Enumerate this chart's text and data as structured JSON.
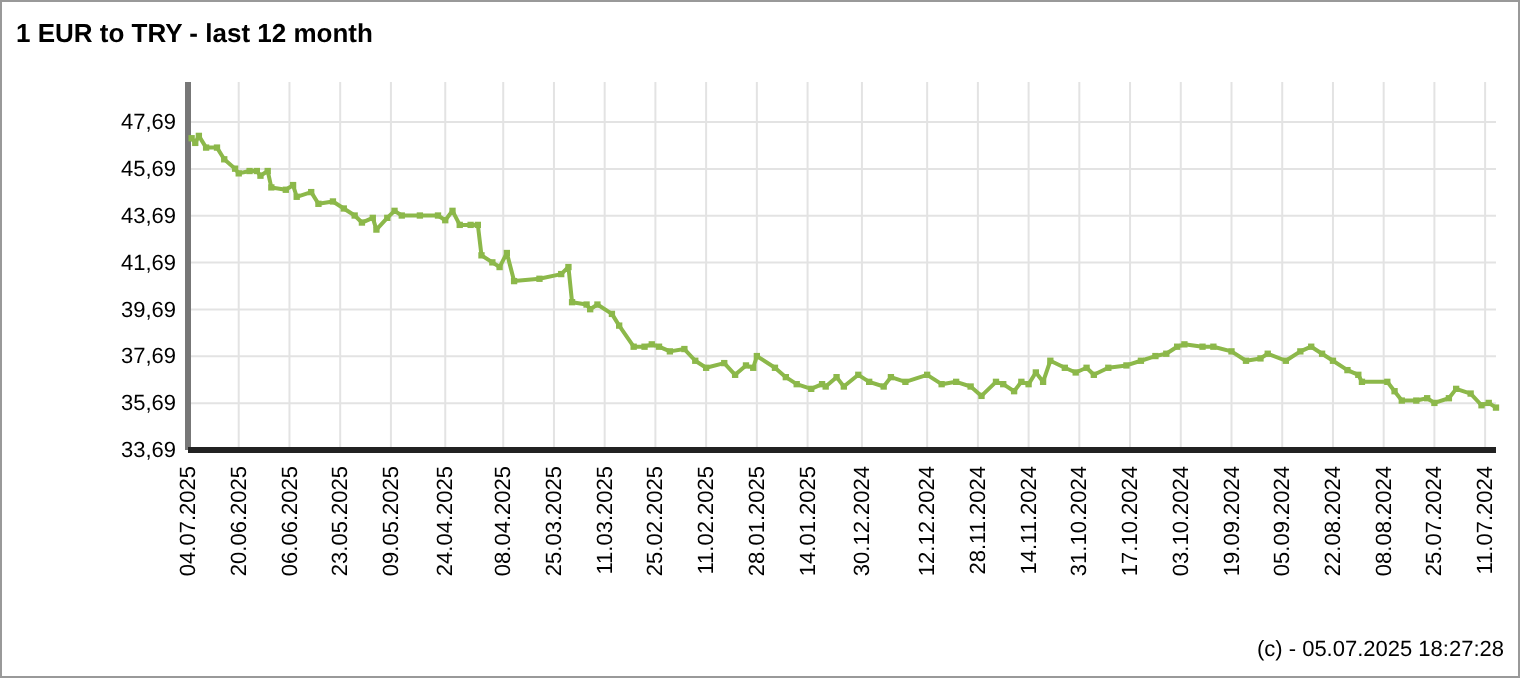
{
  "chart_data": {
    "type": "line",
    "title": "1 EUR to TRY - last 12 month",
    "x": [
      "2025-07-03",
      "2025-07-02",
      "2025-07-01",
      "2025-06-29",
      "2025-06-26",
      "2025-06-24",
      "2025-06-21",
      "2025-06-20",
      "2025-06-17",
      "2025-06-15",
      "2025-06-14",
      "2025-06-12",
      "2025-06-11",
      "2025-06-07",
      "2025-06-05",
      "2025-06-04",
      "2025-05-31",
      "2025-05-29",
      "2025-05-25",
      "2025-05-22",
      "2025-05-19",
      "2025-05-17",
      "2025-05-14",
      "2025-05-13",
      "2025-05-10",
      "2025-05-08",
      "2025-05-06",
      "2025-05-01",
      "2025-04-26",
      "2025-04-24",
      "2025-04-22",
      "2025-04-20",
      "2025-04-17",
      "2025-04-15",
      "2025-04-14",
      "2025-04-11",
      "2025-04-09",
      "2025-04-07",
      "2025-04-05",
      "2025-03-29",
      "2025-03-23",
      "2025-03-21",
      "2025-03-20",
      "2025-03-16",
      "2025-03-15",
      "2025-03-13",
      "2025-03-09",
      "2025-03-07",
      "2025-03-03",
      "2025-02-28",
      "2025-02-26",
      "2025-02-24",
      "2025-02-21",
      "2025-02-17",
      "2025-02-14",
      "2025-02-11",
      "2025-02-06",
      "2025-02-03",
      "2025-01-31",
      "2025-01-29",
      "2025-01-28",
      "2025-01-23",
      "2025-01-20",
      "2025-01-17",
      "2025-01-13",
      "2025-01-10",
      "2025-01-09",
      "2025-01-06",
      "2025-01-04",
      "2024-12-31",
      "2024-12-28",
      "2024-12-24",
      "2024-12-22",
      "2024-12-18",
      "2024-12-12",
      "2024-12-08",
      "2024-12-04",
      "2024-11-30",
      "2024-11-27",
      "2024-11-23",
      "2024-11-21",
      "2024-11-18",
      "2024-11-16",
      "2024-11-14",
      "2024-11-12",
      "2024-11-10",
      "2024-11-08",
      "2024-11-04",
      "2024-11-01",
      "2024-10-29",
      "2024-10-27",
      "2024-10-23",
      "2024-10-18",
      "2024-10-14",
      "2024-10-10",
      "2024-10-07",
      "2024-10-04",
      "2024-10-02",
      "2024-09-27",
      "2024-09-24",
      "2024-09-19",
      "2024-09-15",
      "2024-09-11",
      "2024-09-09",
      "2024-09-04",
      "2024-08-31",
      "2024-08-28",
      "2024-08-25",
      "2024-08-22",
      "2024-08-18",
      "2024-08-15",
      "2024-08-14",
      "2024-08-07",
      "2024-08-05",
      "2024-08-03",
      "2024-07-30",
      "2024-07-27",
      "2024-07-25",
      "2024-07-21",
      "2024-07-19",
      "2024-07-15",
      "2024-07-12",
      "2024-07-10",
      "2024-07-08"
    ],
    "series": [
      {
        "color": "#8cb84a",
        "values": [
          47.0,
          46.8,
          47.1,
          46.6,
          46.6,
          46.1,
          45.7,
          45.5,
          45.6,
          45.6,
          45.4,
          45.6,
          44.9,
          44.8,
          45.0,
          44.5,
          44.7,
          44.2,
          44.3,
          44.0,
          43.7,
          43.4,
          43.6,
          43.1,
          43.6,
          43.9,
          43.7,
          43.7,
          43.7,
          43.5,
          43.9,
          43.3,
          43.3,
          43.3,
          42.0,
          41.7,
          41.5,
          42.1,
          40.9,
          41.0,
          41.2,
          41.5,
          40.0,
          39.9,
          39.7,
          39.9,
          39.5,
          39.0,
          38.1,
          38.1,
          38.2,
          38.1,
          37.9,
          38.0,
          37.5,
          37.2,
          37.4,
          36.9,
          37.3,
          37.2,
          37.7,
          37.2,
          36.8,
          36.5,
          36.3,
          36.5,
          36.4,
          36.8,
          36.4,
          36.9,
          36.6,
          36.4,
          36.8,
          36.6,
          36.9,
          36.5,
          36.6,
          36.4,
          36.0,
          36.6,
          36.5,
          36.2,
          36.6,
          36.5,
          37.0,
          36.6,
          37.5,
          37.2,
          37.0,
          37.2,
          36.9,
          37.2,
          37.3,
          37.5,
          37.7,
          37.8,
          38.1,
          38.2,
          38.1,
          38.1,
          37.9,
          37.5,
          37.6,
          37.8,
          37.5,
          37.9,
          38.1,
          37.8,
          37.5,
          37.1,
          36.9,
          36.6,
          36.6,
          36.2,
          35.8,
          35.8,
          35.9,
          35.7,
          35.9,
          36.3,
          36.1,
          35.6,
          35.7,
          35.5
        ]
      }
    ],
    "xlim": [
      "2025-07-04",
      "2024-07-08"
    ],
    "xticks": [
      {
        "value": "2025-07-04",
        "label": "04.07.2025"
      },
      {
        "value": "2025-06-20",
        "label": "20.06.2025"
      },
      {
        "value": "2025-06-06",
        "label": "06.06.2025"
      },
      {
        "value": "2025-05-23",
        "label": "23.05.2025"
      },
      {
        "value": "2025-05-09",
        "label": "09.05.2025"
      },
      {
        "value": "2025-04-24",
        "label": "24.04.2025"
      },
      {
        "value": "2025-04-08",
        "label": "08.04.2025"
      },
      {
        "value": "2025-03-25",
        "label": "25.03.2025"
      },
      {
        "value": "2025-03-11",
        "label": "11.03.2025"
      },
      {
        "value": "2025-02-25",
        "label": "25.02.2025"
      },
      {
        "value": "2025-02-11",
        "label": "11.02.2025"
      },
      {
        "value": "2025-01-28",
        "label": "28.01.2025"
      },
      {
        "value": "2025-01-14",
        "label": "14.01.2025"
      },
      {
        "value": "2024-12-30",
        "label": "30.12.2024"
      },
      {
        "value": "2024-12-12",
        "label": "12.12.2024"
      },
      {
        "value": "2024-11-28",
        "label": "28.11.2024"
      },
      {
        "value": "2024-11-14",
        "label": "14.11.2024"
      },
      {
        "value": "2024-10-31",
        "label": "31.10.2024"
      },
      {
        "value": "2024-10-17",
        "label": "17.10.2024"
      },
      {
        "value": "2024-10-03",
        "label": "03.10.2024"
      },
      {
        "value": "2024-09-19",
        "label": "19.09.2024"
      },
      {
        "value": "2024-09-05",
        "label": "05.09.2024"
      },
      {
        "value": "2024-08-22",
        "label": "22.08.2024"
      },
      {
        "value": "2024-08-08",
        "label": "08.08.2024"
      },
      {
        "value": "2024-07-25",
        "label": "25.07.2024"
      },
      {
        "value": "2024-07-11",
        "label": "11.07.2024"
      }
    ],
    "ylim": [
      33.69,
      49.4
    ],
    "yticks": [
      {
        "value": 33.69,
        "label": "33,69"
      },
      {
        "value": 35.69,
        "label": "35,69"
      },
      {
        "value": 37.69,
        "label": "37,69"
      },
      {
        "value": 39.69,
        "label": "39,69"
      },
      {
        "value": 41.69,
        "label": "41,69"
      },
      {
        "value": 43.69,
        "label": "43,69"
      },
      {
        "value": 45.69,
        "label": "45,69"
      },
      {
        "value": 47.69,
        "label": "47,69"
      }
    ],
    "grid": true,
    "marker": "square",
    "line_style": "solid",
    "annotations": [
      "(c) - 05.07.2025 18:27:28"
    ]
  }
}
